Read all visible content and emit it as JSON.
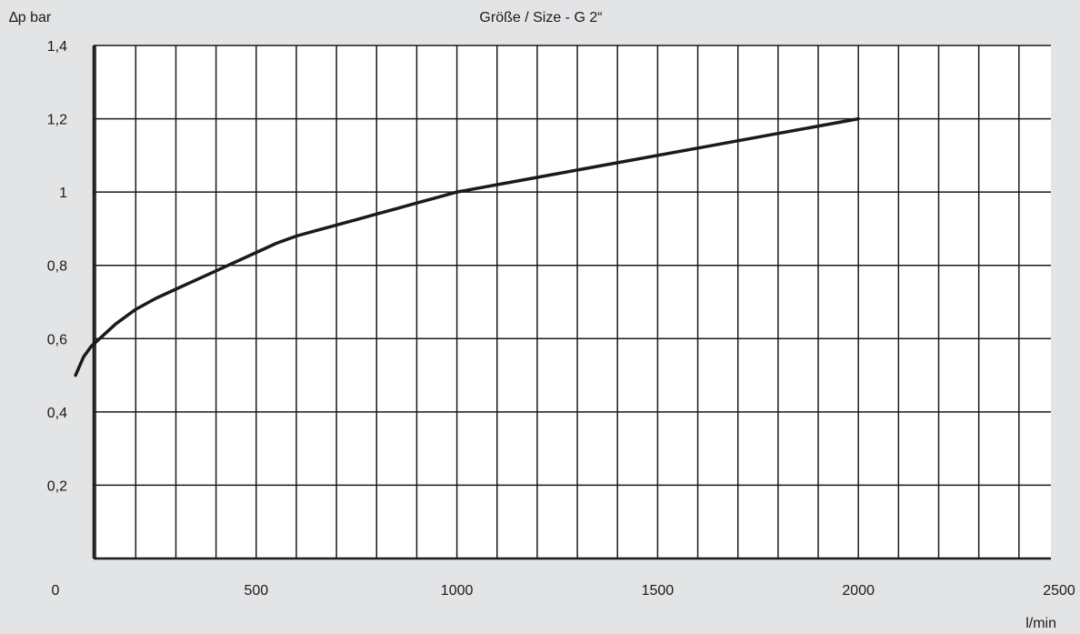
{
  "chart_data": {
    "type": "line",
    "title": "Größe / Size - G 2“",
    "ylabel": "∆p bar",
    "xlabel": "l/min",
    "xlim": [
      0,
      2500
    ],
    "ylim": [
      0,
      1.4
    ],
    "x_ticks": [
      {
        "value": 0,
        "label": "0"
      },
      {
        "value": 500,
        "label": "500"
      },
      {
        "value": 1000,
        "label": "1000"
      },
      {
        "value": 1500,
        "label": "1500"
      },
      {
        "value": 2000,
        "label": "2000"
      },
      {
        "value": 2500,
        "label": "2500"
      }
    ],
    "y_ticks": [
      {
        "value": 0.2,
        "label": "0,2"
      },
      {
        "value": 0.4,
        "label": "0,4"
      },
      {
        "value": 0.6,
        "label": "0,6"
      },
      {
        "value": 0.8,
        "label": "0,8"
      },
      {
        "value": 1.0,
        "label": "1"
      },
      {
        "value": 1.2,
        "label": "1,2"
      },
      {
        "value": 1.4,
        "label": "1,4"
      }
    ],
    "grid": true,
    "x_grid_step": 100,
    "y_grid_step": 0.2,
    "line_color": "#1a1a1a",
    "grid_color": "#1a1a1a",
    "background": "#e3e4e6",
    "plot_background": "#ffffff",
    "series": [
      {
        "values_xy": [
          [
            50,
            0.5
          ],
          [
            70,
            0.55
          ],
          [
            90,
            0.58
          ],
          [
            110,
            0.6
          ],
          [
            150,
            0.64
          ],
          [
            200,
            0.68
          ],
          [
            250,
            0.71
          ],
          [
            300,
            0.735
          ],
          [
            350,
            0.76
          ],
          [
            400,
            0.785
          ],
          [
            450,
            0.81
          ],
          [
            500,
            0.835
          ],
          [
            550,
            0.86
          ],
          [
            600,
            0.88
          ],
          [
            650,
            0.895
          ],
          [
            700,
            0.91
          ],
          [
            750,
            0.925
          ],
          [
            800,
            0.94
          ],
          [
            850,
            0.955
          ],
          [
            900,
            0.97
          ],
          [
            950,
            0.985
          ],
          [
            1000,
            1.0
          ],
          [
            1200,
            1.04
          ],
          [
            1400,
            1.08
          ],
          [
            1600,
            1.12
          ],
          [
            1800,
            1.16
          ],
          [
            2000,
            1.2
          ]
        ]
      }
    ]
  }
}
